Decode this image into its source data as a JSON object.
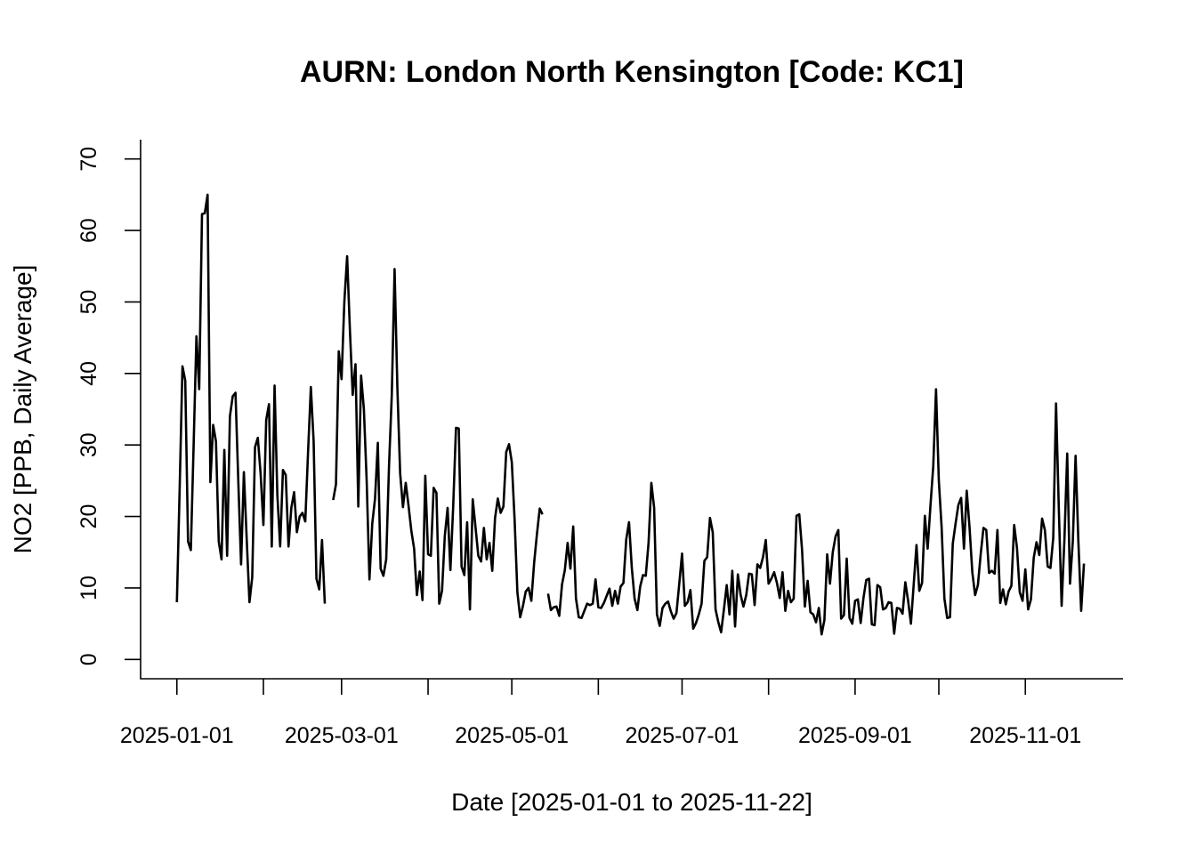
{
  "chart_data": {
    "type": "line",
    "title": "AURN: London North Kensington [Code: KC1]",
    "xlabel": "Date [2025-01-01 to 2025-11-22]",
    "ylabel": "NO2 [PPB, Daily Average]",
    "xlim": [
      "2024-12-19",
      "2025-12-06"
    ],
    "xticks": [
      "2025-01-01",
      "2025-03-01",
      "2025-05-01",
      "2025-07-01",
      "2025-09-01",
      "2025-11-01"
    ],
    "xminor_ticks": [
      "2025-02-01",
      "2025-04-01",
      "2025-06-01",
      "2025-08-01",
      "2025-10-01"
    ],
    "ylim": [
      -2.7,
      72.7
    ],
    "yticks": [
      0,
      10,
      20,
      30,
      40,
      50,
      60,
      70
    ],
    "x": [
      "2025-01-01",
      "2025-01-02",
      "2025-01-03",
      "2025-01-04",
      "2025-01-05",
      "2025-01-06",
      "2025-01-07",
      "2025-01-08",
      "2025-01-09",
      "2025-01-10",
      "2025-01-11",
      "2025-01-12",
      "2025-01-13",
      "2025-01-14",
      "2025-01-15",
      "2025-01-16",
      "2025-01-17",
      "2025-01-18",
      "2025-01-19",
      "2025-01-20",
      "2025-01-21",
      "2025-01-22",
      "2025-01-23",
      "2025-01-24",
      "2025-01-25",
      "2025-01-26",
      "2025-01-27",
      "2025-01-28",
      "2025-01-29",
      "2025-01-30",
      "2025-01-31",
      "2025-02-01",
      "2025-02-02",
      "2025-02-03",
      "2025-02-04",
      "2025-02-05",
      "2025-02-06",
      "2025-02-07",
      "2025-02-08",
      "2025-02-09",
      "2025-02-10",
      "2025-02-11",
      "2025-02-12",
      "2025-02-13",
      "2025-02-14",
      "2025-02-15",
      "2025-02-16",
      "2025-02-17",
      "2025-02-18",
      "2025-02-19",
      "2025-02-20",
      "2025-02-21",
      "2025-02-22",
      "2025-02-23",
      "2025-02-24",
      "2025-02-25",
      "2025-02-26",
      "2025-02-27",
      "2025-02-28",
      "2025-03-01",
      "2025-03-02",
      "2025-03-03",
      "2025-03-04",
      "2025-03-05",
      "2025-03-06",
      "2025-03-07",
      "2025-03-08",
      "2025-03-09",
      "2025-03-10",
      "2025-03-11",
      "2025-03-12",
      "2025-03-13",
      "2025-03-14",
      "2025-03-15",
      "2025-03-16",
      "2025-03-17",
      "2025-03-18",
      "2025-03-19",
      "2025-03-20",
      "2025-03-21",
      "2025-03-22",
      "2025-03-23",
      "2025-03-24",
      "2025-03-25",
      "2025-03-26",
      "2025-03-27",
      "2025-03-28",
      "2025-03-29",
      "2025-03-30",
      "2025-03-31",
      "2025-04-01",
      "2025-04-02",
      "2025-04-03",
      "2025-04-04",
      "2025-04-05",
      "2025-04-06",
      "2025-04-07",
      "2025-04-08",
      "2025-04-09",
      "2025-04-10",
      "2025-04-11",
      "2025-04-12",
      "2025-04-13",
      "2025-04-14",
      "2025-04-15",
      "2025-04-16",
      "2025-04-17",
      "2025-04-18",
      "2025-04-19",
      "2025-04-20",
      "2025-04-21",
      "2025-04-22",
      "2025-04-23",
      "2025-04-24",
      "2025-04-25",
      "2025-04-26",
      "2025-04-27",
      "2025-04-28",
      "2025-04-29",
      "2025-04-30",
      "2025-05-01",
      "2025-05-02",
      "2025-05-03",
      "2025-05-04",
      "2025-05-05",
      "2025-05-06",
      "2025-05-07",
      "2025-05-08",
      "2025-05-09",
      "2025-05-10",
      "2025-05-11",
      "2025-05-12",
      "2025-05-13",
      "2025-05-14",
      "2025-05-15",
      "2025-05-16",
      "2025-05-17",
      "2025-05-18",
      "2025-05-19",
      "2025-05-20",
      "2025-05-21",
      "2025-05-22",
      "2025-05-23",
      "2025-05-24",
      "2025-05-25",
      "2025-05-26",
      "2025-05-27",
      "2025-05-28",
      "2025-05-29",
      "2025-05-30",
      "2025-05-31",
      "2025-06-01",
      "2025-06-02",
      "2025-06-03",
      "2025-06-04",
      "2025-06-05",
      "2025-06-06",
      "2025-06-07",
      "2025-06-08",
      "2025-06-09",
      "2025-06-10",
      "2025-06-11",
      "2025-06-12",
      "2025-06-13",
      "2025-06-14",
      "2025-06-15",
      "2025-06-16",
      "2025-06-17",
      "2025-06-18",
      "2025-06-19",
      "2025-06-20",
      "2025-06-21",
      "2025-06-22",
      "2025-06-23",
      "2025-06-24",
      "2025-06-25",
      "2025-06-26",
      "2025-06-27",
      "2025-06-28",
      "2025-06-29",
      "2025-06-30",
      "2025-07-01",
      "2025-07-02",
      "2025-07-03",
      "2025-07-04",
      "2025-07-05",
      "2025-07-06",
      "2025-07-07",
      "2025-07-08",
      "2025-07-09",
      "2025-07-10",
      "2025-07-11",
      "2025-07-12",
      "2025-07-13",
      "2025-07-14",
      "2025-07-15",
      "2025-07-16",
      "2025-07-17",
      "2025-07-18",
      "2025-07-19",
      "2025-07-20",
      "2025-07-21",
      "2025-07-22",
      "2025-07-23",
      "2025-07-24",
      "2025-07-25",
      "2025-07-26",
      "2025-07-27",
      "2025-07-28",
      "2025-07-29",
      "2025-07-30",
      "2025-07-31",
      "2025-08-01",
      "2025-08-02",
      "2025-08-03",
      "2025-08-04",
      "2025-08-05",
      "2025-08-06",
      "2025-08-07",
      "2025-08-08",
      "2025-08-09",
      "2025-08-10",
      "2025-08-11",
      "2025-08-12",
      "2025-08-13",
      "2025-08-14",
      "2025-08-15",
      "2025-08-16",
      "2025-08-17",
      "2025-08-18",
      "2025-08-19",
      "2025-08-20",
      "2025-08-21",
      "2025-08-22",
      "2025-08-23",
      "2025-08-24",
      "2025-08-25",
      "2025-08-26",
      "2025-08-27",
      "2025-08-28",
      "2025-08-29",
      "2025-08-30",
      "2025-08-31",
      "2025-09-01",
      "2025-09-02",
      "2025-09-03",
      "2025-09-04",
      "2025-09-05",
      "2025-09-06",
      "2025-09-07",
      "2025-09-08",
      "2025-09-09",
      "2025-09-10",
      "2025-09-11",
      "2025-09-12",
      "2025-09-13",
      "2025-09-14",
      "2025-09-15",
      "2025-09-16",
      "2025-09-17",
      "2025-09-18",
      "2025-09-19",
      "2025-09-20",
      "2025-09-21",
      "2025-09-22",
      "2025-09-23",
      "2025-09-24",
      "2025-09-25",
      "2025-09-26",
      "2025-09-27",
      "2025-09-28",
      "2025-09-29",
      "2025-09-30",
      "2025-10-01",
      "2025-10-02",
      "2025-10-03",
      "2025-10-04",
      "2025-10-05",
      "2025-10-06",
      "2025-10-07",
      "2025-10-08",
      "2025-10-09",
      "2025-10-10",
      "2025-10-11",
      "2025-10-12",
      "2025-10-13",
      "2025-10-14",
      "2025-10-15",
      "2025-10-16",
      "2025-10-17",
      "2025-10-18",
      "2025-10-19",
      "2025-10-20",
      "2025-10-21",
      "2025-10-22",
      "2025-10-23",
      "2025-10-24",
      "2025-10-25",
      "2025-10-26",
      "2025-10-27",
      "2025-10-28",
      "2025-10-29",
      "2025-10-30",
      "2025-10-31",
      "2025-11-01",
      "2025-11-02",
      "2025-11-03",
      "2025-11-04",
      "2025-11-05",
      "2025-11-06",
      "2025-11-07",
      "2025-11-08",
      "2025-11-09",
      "2025-11-10",
      "2025-11-11",
      "2025-11-12",
      "2025-11-13",
      "2025-11-14",
      "2025-11-15",
      "2025-11-16",
      "2025-11-17",
      "2025-11-18",
      "2025-11-19",
      "2025-11-20",
      "2025-11-21",
      "2025-11-22"
    ],
    "series": [
      {
        "color": "#000000",
        "values": [
          8,
          24,
          41,
          39,
          16.5,
          15.3,
          30,
          45.2,
          37.8,
          62.3,
          62.4,
          65,
          24.8,
          32.8,
          30.5,
          16.5,
          14,
          29.3,
          14.5,
          34,
          36.8,
          37.3,
          25,
          13.3,
          26.2,
          17,
          8,
          11.5,
          29.7,
          31,
          26,
          18.8,
          33.5,
          35.7,
          15.8,
          38.3,
          23,
          15.8,
          26.5,
          25.8,
          15.8,
          21.2,
          23.4,
          17.8,
          20,
          20.5,
          19.3,
          29,
          38.1,
          30.5,
          11.3,
          9.8,
          16.7,
          7.8,
          null,
          null,
          22.3,
          24.5,
          43.1,
          39.2,
          50,
          56.4,
          46,
          37,
          41.3,
          21.4,
          39.7,
          35,
          25,
          11.2,
          19,
          22.5,
          30.3,
          12.7,
          11.7,
          14,
          27,
          37,
          54.6,
          38,
          26,
          21.3,
          24.7,
          21.5,
          18,
          15.5,
          9,
          12.3,
          8.3,
          25.7,
          14.7,
          14.5,
          24,
          23.3,
          7.8,
          9.6,
          17.3,
          21.2,
          12.5,
          21.4,
          32.4,
          32.3,
          13,
          11.8,
          19.2,
          7,
          22.4,
          18.5,
          14.5,
          13.7,
          18.4,
          14,
          16.3,
          12.4,
          19.8,
          22.5,
          20.5,
          21.4,
          29,
          30.1,
          27.6,
          19.6,
          9.4,
          5.9,
          7.5,
          9.5,
          10,
          8.2,
          13.5,
          17.5,
          21.1,
          20.3,
          null,
          9.2,
          6.9,
          7.3,
          7.4,
          6.1,
          10.5,
          12.5,
          16.3,
          12.7,
          18.6,
          8.5,
          5.9,
          5.8,
          6.8,
          7.8,
          7.6,
          7.8,
          11.2,
          7.3,
          7.2,
          7.9,
          8.9,
          9.9,
          7.5,
          9.6,
          7.8,
          10.2,
          10.7,
          16.8,
          19.2,
          12.8,
          8.5,
          6.9,
          10.2,
          11.8,
          11.7,
          16.3,
          24.7,
          21.2,
          6.3,
          4.7,
          7.2,
          7.8,
          8.1,
          6.7,
          5.7,
          6.5,
          10.6,
          14.8,
          7.5,
          8,
          9.7,
          4.3,
          5.1,
          6.3,
          7.8,
          13.8,
          14.3,
          19.8,
          17.8,
          7,
          5.2,
          3.8,
          7,
          10.4,
          6.3,
          12.4,
          4.6,
          11.9,
          9,
          7.4,
          9,
          12,
          11.9,
          7.6,
          13.3,
          12.8,
          14.3,
          16.7,
          10.6,
          11.3,
          12.2,
          10.7,
          8.6,
          12.2,
          6.8,
          9.6,
          8,
          8.5,
          20.1,
          20.3,
          15.3,
          7.4,
          11,
          6.6,
          6.3,
          5.2,
          7.2,
          3.5,
          5.5,
          14.7,
          10.6,
          15,
          17.2,
          18.1,
          5.7,
          6.2,
          14.1,
          5.8,
          5,
          8.2,
          8.4,
          5.1,
          8.6,
          11.1,
          11.3,
          4.9,
          4.8,
          10.4,
          10.1,
          7,
          7.2,
          8,
          7.9,
          3.6,
          7.2,
          7.1,
          6.4,
          10.8,
          8.2,
          5,
          10.5,
          16,
          9.6,
          10.7,
          20.1,
          15.5,
          21.5,
          27,
          37.8,
          25,
          18.5,
          8.5,
          5.8,
          5.9,
          16.2,
          19,
          21.6,
          22.6,
          15.5,
          23.6,
          18.5,
          12.2,
          9,
          10.4,
          14.7,
          18.4,
          18.1,
          12.1,
          12.4,
          12,
          18.1,
          7.9,
          9.8,
          7.7,
          9.5,
          10.3,
          18.8,
          15.6,
          9.4,
          8.2,
          12.6,
          7,
          8.4,
          14.2,
          16.4,
          14.6,
          19.7,
          18.1,
          13,
          12.8,
          17,
          35.8,
          21,
          7.5,
          16.8,
          28.8,
          10.6,
          16.5,
          28.5,
          16.5,
          6.8,
          13.4
        ]
      }
    ]
  }
}
